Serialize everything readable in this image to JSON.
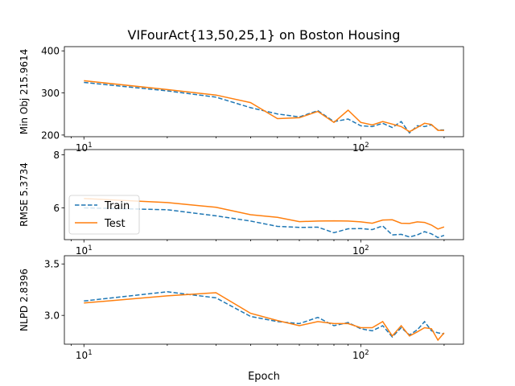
{
  "figure": {
    "title": "VIFourAct{13,50,25,1} on Boston Housing",
    "xlabel": "Epoch"
  },
  "legend": {
    "placement": "center-left",
    "entries": [
      "Train",
      "Test"
    ]
  },
  "colors": {
    "train": "#1f77b4",
    "test": "#ff7f0e"
  },
  "chart_data": [
    {
      "type": "line",
      "ylabel": "Min Obj 215.9614",
      "xscale": "log",
      "xlim": [
        8.5,
        235
      ],
      "ylim": [
        196,
        410
      ],
      "x_ticks": [
        {
          "v": 10,
          "base": "10",
          "exp": "1"
        },
        {
          "v": 100,
          "base": "10",
          "exp": "2"
        }
      ],
      "y_ticks": [
        200,
        300,
        400
      ],
      "series": [
        {
          "name": "Train",
          "x": [
            10,
            20,
            30,
            40,
            50,
            60,
            70,
            80,
            90,
            100,
            110,
            120,
            130,
            140,
            150,
            160,
            170,
            180,
            190,
            200
          ],
          "y": [
            325,
            305,
            290,
            265,
            250,
            243,
            258,
            232,
            238,
            222,
            220,
            228,
            218,
            232,
            205,
            222,
            220,
            224,
            212,
            212
          ]
        },
        {
          "name": "Test",
          "x": [
            10,
            20,
            30,
            40,
            50,
            60,
            70,
            80,
            90,
            100,
            110,
            120,
            130,
            140,
            150,
            160,
            170,
            180,
            190,
            200
          ],
          "y": [
            329,
            308,
            295,
            277,
            239,
            241,
            256,
            230,
            259,
            230,
            224,
            232,
            226,
            220,
            208,
            218,
            228,
            225,
            211,
            211
          ]
        }
      ]
    },
    {
      "type": "line",
      "ylabel": "RMSE 5.3734",
      "xscale": "log",
      "xlim": [
        8.5,
        235
      ],
      "ylim": [
        4.8,
        8.2
      ],
      "x_ticks": [
        {
          "v": 10,
          "base": "10",
          "exp": "1"
        },
        {
          "v": 100,
          "base": "10",
          "exp": "2"
        }
      ],
      "y_ticks": [
        6,
        8
      ],
      "series": [
        {
          "name": "Train",
          "x": [
            10,
            20,
            30,
            40,
            50,
            60,
            70,
            80,
            90,
            100,
            110,
            120,
            130,
            140,
            150,
            160,
            170,
            180,
            190,
            200
          ],
          "y": [
            6.0,
            5.93,
            5.7,
            5.5,
            5.3,
            5.26,
            5.27,
            5.06,
            5.21,
            5.22,
            5.18,
            5.32,
            4.98,
            5.0,
            4.9,
            4.98,
            5.1,
            5.02,
            4.88,
            4.96
          ]
        },
        {
          "name": "Test",
          "x": [
            10,
            20,
            30,
            40,
            50,
            60,
            70,
            80,
            90,
            100,
            110,
            120,
            130,
            140,
            150,
            160,
            170,
            180,
            190,
            200
          ],
          "y": [
            6.35,
            6.2,
            6.02,
            5.74,
            5.64,
            5.48,
            5.5,
            5.51,
            5.5,
            5.47,
            5.42,
            5.54,
            5.55,
            5.42,
            5.41,
            5.47,
            5.45,
            5.35,
            5.2,
            5.28
          ]
        }
      ]
    },
    {
      "type": "line",
      "ylabel": "NLPD 2.8396",
      "xscale": "log",
      "xlim": [
        8.5,
        235
      ],
      "ylim": [
        2.72,
        3.58
      ],
      "x_ticks": [
        {
          "v": 10,
          "base": "10",
          "exp": "1"
        },
        {
          "v": 100,
          "base": "10",
          "exp": "2"
        }
      ],
      "y_ticks": [
        3.0,
        3.5
      ],
      "y_tick_labels": [
        "3.0",
        "3.5"
      ],
      "series": [
        {
          "name": "Train",
          "x": [
            10,
            20,
            30,
            40,
            50,
            60,
            70,
            80,
            90,
            100,
            110,
            120,
            130,
            140,
            150,
            160,
            170,
            180,
            190,
            200
          ],
          "y": [
            3.14,
            3.23,
            3.17,
            2.99,
            2.94,
            2.92,
            2.98,
            2.9,
            2.93,
            2.87,
            2.85,
            2.9,
            2.79,
            2.88,
            2.81,
            2.86,
            2.94,
            2.85,
            2.83,
            2.82
          ]
        },
        {
          "name": "Test",
          "x": [
            10,
            20,
            30,
            40,
            50,
            60,
            70,
            80,
            90,
            100,
            110,
            120,
            130,
            140,
            150,
            160,
            170,
            180,
            190,
            200
          ],
          "y": [
            3.12,
            3.19,
            3.22,
            3.02,
            2.95,
            2.9,
            2.94,
            2.92,
            2.92,
            2.88,
            2.88,
            2.94,
            2.8,
            2.9,
            2.8,
            2.84,
            2.88,
            2.87,
            2.76,
            2.83
          ]
        }
      ]
    }
  ]
}
